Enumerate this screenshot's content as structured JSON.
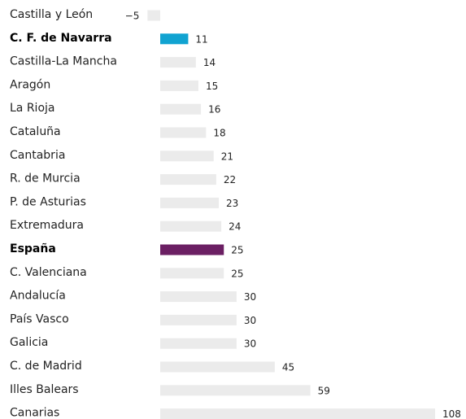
{
  "chart_data": {
    "type": "bar",
    "orientation": "horizontal",
    "categories": [
      "Castilla y León",
      "C. F. de Navarra",
      "Castilla-La Mancha",
      "Aragón",
      "La Rioja",
      "Cataluña",
      "Cantabria",
      "R. de Murcia",
      "P. de Asturias",
      "Extremadura",
      "España",
      "C. Valenciana",
      "Andalucía",
      "País Vasco",
      "Galicia",
      "C. de Madrid",
      "Illes Balears",
      "Canarias"
    ],
    "values": [
      -5,
      11,
      14,
      15,
      16,
      18,
      21,
      22,
      23,
      24,
      25,
      25,
      30,
      30,
      30,
      45,
      59,
      108
    ],
    "value_labels": [
      "−5",
      "11",
      "14",
      "15",
      "16",
      "18",
      "21",
      "22",
      "23",
      "24",
      "25",
      "25",
      "30",
      "30",
      "30",
      "45",
      "59",
      "108"
    ],
    "color": "#ebebeb",
    "colors": [
      "#ebebeb",
      "#11a3d1",
      "#ebebeb",
      "#ebebeb",
      "#ebebeb",
      "#ebebeb",
      "#ebebeb",
      "#ebebeb",
      "#ebebeb",
      "#ebebeb",
      "#6b1f63",
      "#ebebeb",
      "#ebebeb",
      "#ebebeb",
      "#ebebeb",
      "#ebebeb",
      "#ebebeb",
      "#ebebeb"
    ]
  }
}
